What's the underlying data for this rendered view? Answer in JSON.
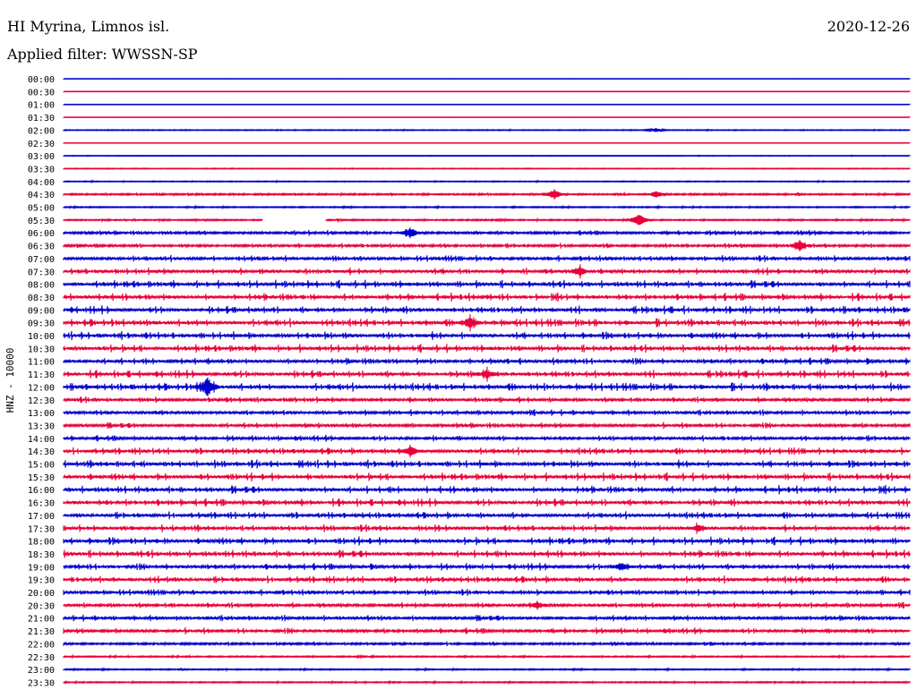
{
  "header": {
    "station": "HI Myrina, Limnos isl.",
    "date": "2020-12-26",
    "filter": "Applied filter: WWSSN-SP"
  },
  "chart_data": {
    "type": "line",
    "title": "HI Myrina, Limnos isl.",
    "subtitle": "Applied filter: WWSSN-SP",
    "date": "2020-12-26",
    "ylabel": "HNZ - 10000",
    "row_labels": [
      "00:00",
      "00:30",
      "01:00",
      "01:30",
      "02:00",
      "02:30",
      "03:00",
      "03:30",
      "04:00",
      "04:30",
      "05:00",
      "05:30",
      "06:00",
      "06:30",
      "07:00",
      "07:30",
      "08:00",
      "08:30",
      "09:00",
      "09:30",
      "10:00",
      "10:30",
      "11:00",
      "11:30",
      "12:00",
      "12:30",
      "13:00",
      "13:30",
      "14:00",
      "14:30",
      "15:00",
      "15:30",
      "16:00",
      "16:30",
      "17:00",
      "17:30",
      "18:00",
      "18:30",
      "19:00",
      "19:30",
      "20:00",
      "20:30",
      "21:00",
      "21:30",
      "22:00",
      "22:30",
      "23:00",
      "23:30"
    ],
    "trace_colors": [
      "#0000cc",
      "#e8003a"
    ],
    "activity": [
      0,
      0,
      0,
      0,
      0.5,
      0,
      0.3,
      0.4,
      0.6,
      1.5,
      1.0,
      1.2,
      2.5,
      2.5,
      3,
      3.5,
      4,
      4,
      4,
      4,
      4,
      4,
      3.5,
      4,
      4,
      3,
      3,
      3,
      3,
      3.5,
      4,
      4,
      4,
      4,
      3.5,
      3.5,
      4,
      4,
      3.5,
      3.5,
      3,
      3,
      3,
      3,
      2,
      1,
      1,
      1
    ],
    "gaps": [
      {
        "row": "05:30",
        "from_fraction": 0.235,
        "to_fraction": 0.31
      }
    ],
    "events": [
      {
        "row": "02:00",
        "position": 0.7,
        "amplitude": 2
      },
      {
        "row": "04:30",
        "position": 0.58,
        "amplitude": 6
      },
      {
        "row": "04:30",
        "position": 0.7,
        "amplitude": 4
      },
      {
        "row": "05:30",
        "position": 0.68,
        "amplitude": 8
      },
      {
        "row": "06:00",
        "position": 0.41,
        "amplitude": 6
      },
      {
        "row": "06:30",
        "position": 0.87,
        "amplitude": 6
      },
      {
        "row": "07:30",
        "position": 0.61,
        "amplitude": 5
      },
      {
        "row": "09:30",
        "position": 0.48,
        "amplitude": 6
      },
      {
        "row": "11:30",
        "position": 0.5,
        "amplitude": 5
      },
      {
        "row": "12:00",
        "position": 0.17,
        "amplitude": 11
      },
      {
        "row": "14:30",
        "position": 0.41,
        "amplitude": 6
      },
      {
        "row": "17:30",
        "position": 0.75,
        "amplitude": 4
      },
      {
        "row": "19:00",
        "position": 0.66,
        "amplitude": 4
      },
      {
        "row": "20:30",
        "position": 0.56,
        "amplitude": 3
      }
    ],
    "grid": false
  }
}
